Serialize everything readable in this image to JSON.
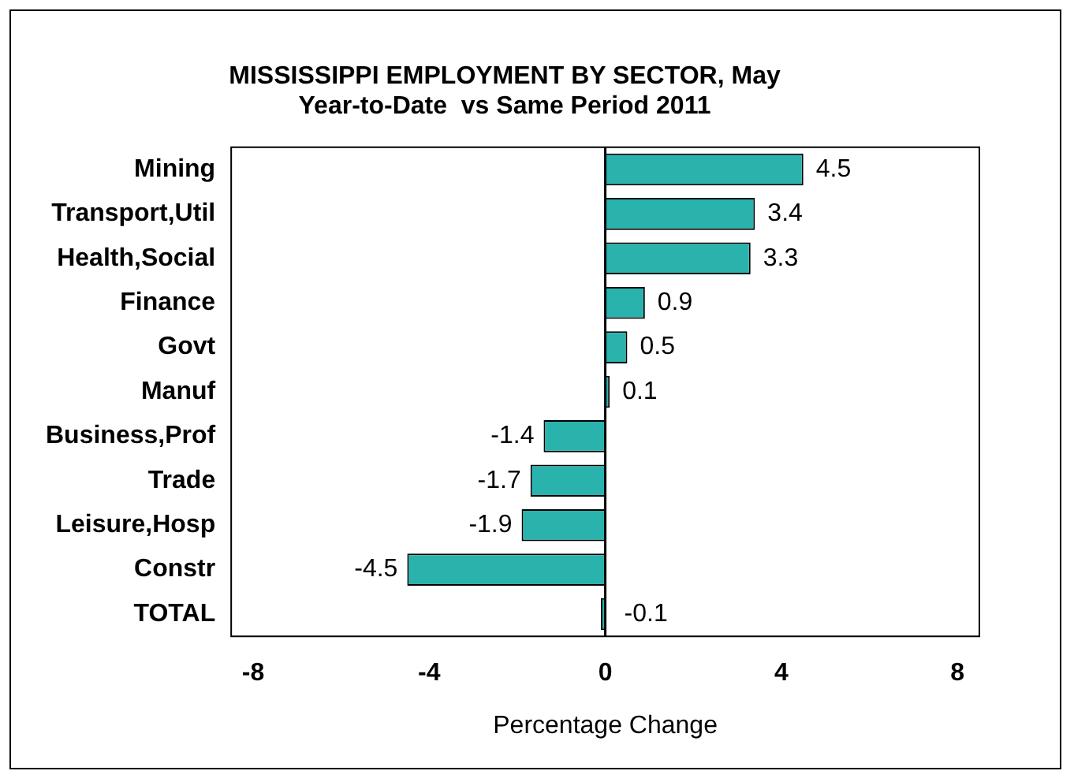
{
  "chart_data": {
    "type": "bar",
    "orientation": "horizontal",
    "title": "MISSISSIPPI EMPLOYMENT BY SECTOR, May",
    "subtitle": "Year-to-Date  vs Same Period 2011",
    "xlabel": "Percentage Change",
    "categories": [
      "Mining",
      "Transport,Util",
      "Health,Social",
      "Finance",
      "Govt",
      "Manuf",
      "Business,Prof",
      "Trade",
      "Leisure,Hosp",
      "Constr",
      "TOTAL"
    ],
    "values": [
      4.5,
      3.4,
      3.3,
      0.9,
      0.5,
      0.1,
      -1.4,
      -1.7,
      -1.9,
      -4.5,
      -0.1
    ],
    "color": "#2ab3ad",
    "xlim": [
      -8.5,
      8.5
    ],
    "xticks": [
      -8,
      -4,
      0,
      4,
      8
    ],
    "grid": false,
    "ref_lines": [
      {
        "axis": "x",
        "value": 0,
        "color": "#000000"
      }
    ],
    "legend": false,
    "data_labels": true
  }
}
